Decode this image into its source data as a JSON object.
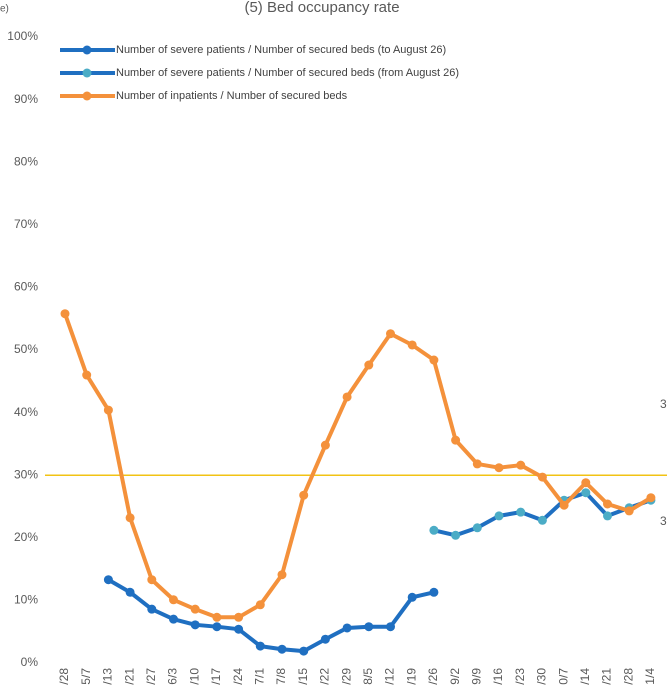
{
  "chart_data": {
    "type": "line",
    "title": "(5) Bed occupancy rate",
    "corner_text": "e)",
    "categories": [
      "/28",
      "5/7",
      "/13",
      "/21",
      "/27",
      "6/3",
      "/10",
      "/17",
      "/24",
      "7/1",
      "7/8",
      "/15",
      "/22",
      "/29",
      "8/5",
      "/12",
      "/19",
      "/26",
      "9/2",
      "9/9",
      "/16",
      "/23",
      "/30",
      "0/7",
      "/14",
      "/21",
      "/28",
      "1/4"
    ],
    "series": [
      {
        "name": "Number of severe patients / Number of secured beds (to August 26)",
        "color": "#1f6fc1",
        "marker": "#1f6fc1",
        "values": [
          null,
          null,
          13.3,
          11.3,
          8.6,
          7.0,
          6.1,
          5.8,
          5.4,
          2.7,
          2.2,
          1.9,
          3.8,
          5.6,
          5.8,
          5.8,
          10.5,
          11.3,
          null,
          null,
          null,
          null,
          null,
          null,
          null,
          null,
          null,
          null
        ]
      },
      {
        "name": "Number of severe patients / Number of secured beds (from August 26)",
        "color": "#1f6fc1",
        "marker": "#4bacc6",
        "values": [
          null,
          null,
          null,
          null,
          null,
          null,
          null,
          null,
          null,
          null,
          null,
          null,
          null,
          null,
          null,
          null,
          null,
          21.2,
          20.4,
          21.6,
          23.5,
          24.1,
          22.8,
          26.0,
          27.2,
          23.5,
          24.8,
          26.0
        ]
      },
      {
        "name": "Number of inpatients / Number of secured beds",
        "color": "#f4913b",
        "marker": "#f4913b",
        "values": [
          55.8,
          46.0,
          40.4,
          23.2,
          13.3,
          10.1,
          8.6,
          7.3,
          7.3,
          9.3,
          14.1,
          26.8,
          34.8,
          42.5,
          47.6,
          52.6,
          50.8,
          48.4,
          35.6,
          31.8,
          31.2,
          31.6,
          29.7,
          25.2,
          28.8,
          25.4,
          24.3,
          26.4
        ]
      }
    ],
    "reference_line": {
      "value": 30,
      "color": "#f2c314"
    },
    "annotations": [
      "3",
      "3"
    ],
    "ylim": [
      0,
      100
    ],
    "yticks": [
      {
        "value": 0,
        "label": "0%"
      },
      {
        "value": 10,
        "label": "10%"
      },
      {
        "value": 20,
        "label": "20%"
      },
      {
        "value": 30,
        "label": "30%"
      },
      {
        "value": 40,
        "label": "40%"
      },
      {
        "value": 50,
        "label": "50%"
      },
      {
        "value": 60,
        "label": "60%"
      },
      {
        "value": 70,
        "label": "70%"
      },
      {
        "value": 80,
        "label": "80%"
      },
      {
        "value": 90,
        "label": "90%"
      },
      {
        "value": 100,
        "label": "100%"
      }
    ],
    "grid": false
  }
}
